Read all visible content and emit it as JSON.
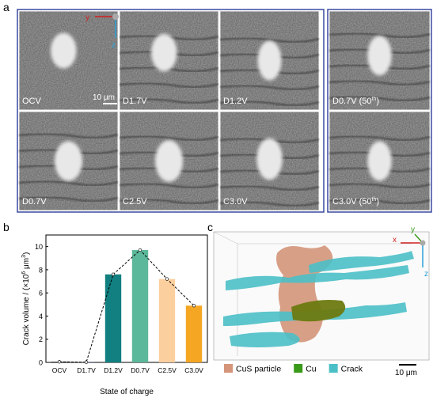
{
  "panel_labels": [
    "a",
    "b",
    "c"
  ],
  "panel_a": {
    "images": [
      {
        "text": "OCV"
      },
      {
        "text": "D1.7V"
      },
      {
        "text": "D1.2V"
      },
      {
        "text": "D0.7V"
      },
      {
        "text": "C2.5V"
      },
      {
        "text": "C3.0V"
      },
      {
        "text": "D0.7V (50",
        "sup": "th",
        "end": ")"
      },
      {
        "text": "C3.0V (50",
        "sup": "th",
        "end": ")"
      }
    ],
    "scale_bar": "10 μm",
    "axes": [
      "y",
      "z"
    ]
  },
  "chart_data": {
    "type": "bar",
    "categories": [
      "OCV",
      "D1.7V",
      "D1.2V",
      "D0.7V",
      "C2.5V",
      "C3.0V"
    ],
    "values": [
      0.05,
      0.02,
      7.6,
      9.7,
      7.2,
      4.9
    ],
    "colors": [
      "#000000",
      "#1f3f8f",
      "#127f80",
      "#5cb89a",
      "#fccf9f",
      "#f5a623"
    ],
    "ylim": [
      0,
      11
    ],
    "yticks": [
      0,
      2,
      4,
      6,
      8,
      10
    ],
    "xlabel": "State of charge",
    "ylabel": {
      "text": "Crack volume / (×10",
      "sup1": "6",
      "mid": " μm",
      "sup2": "3",
      "end": ")"
    },
    "line_style": "dashed"
  },
  "panel_c": {
    "legend": [
      {
        "name": "CuS particle",
        "color": "#d4957a"
      },
      {
        "name": "Cu",
        "color": "#3a9a1a"
      },
      {
        "name": "Crack",
        "color": "#4bbfc6"
      }
    ],
    "axes": [
      "x",
      "y",
      "z"
    ],
    "scale_bar": "10 μm"
  }
}
